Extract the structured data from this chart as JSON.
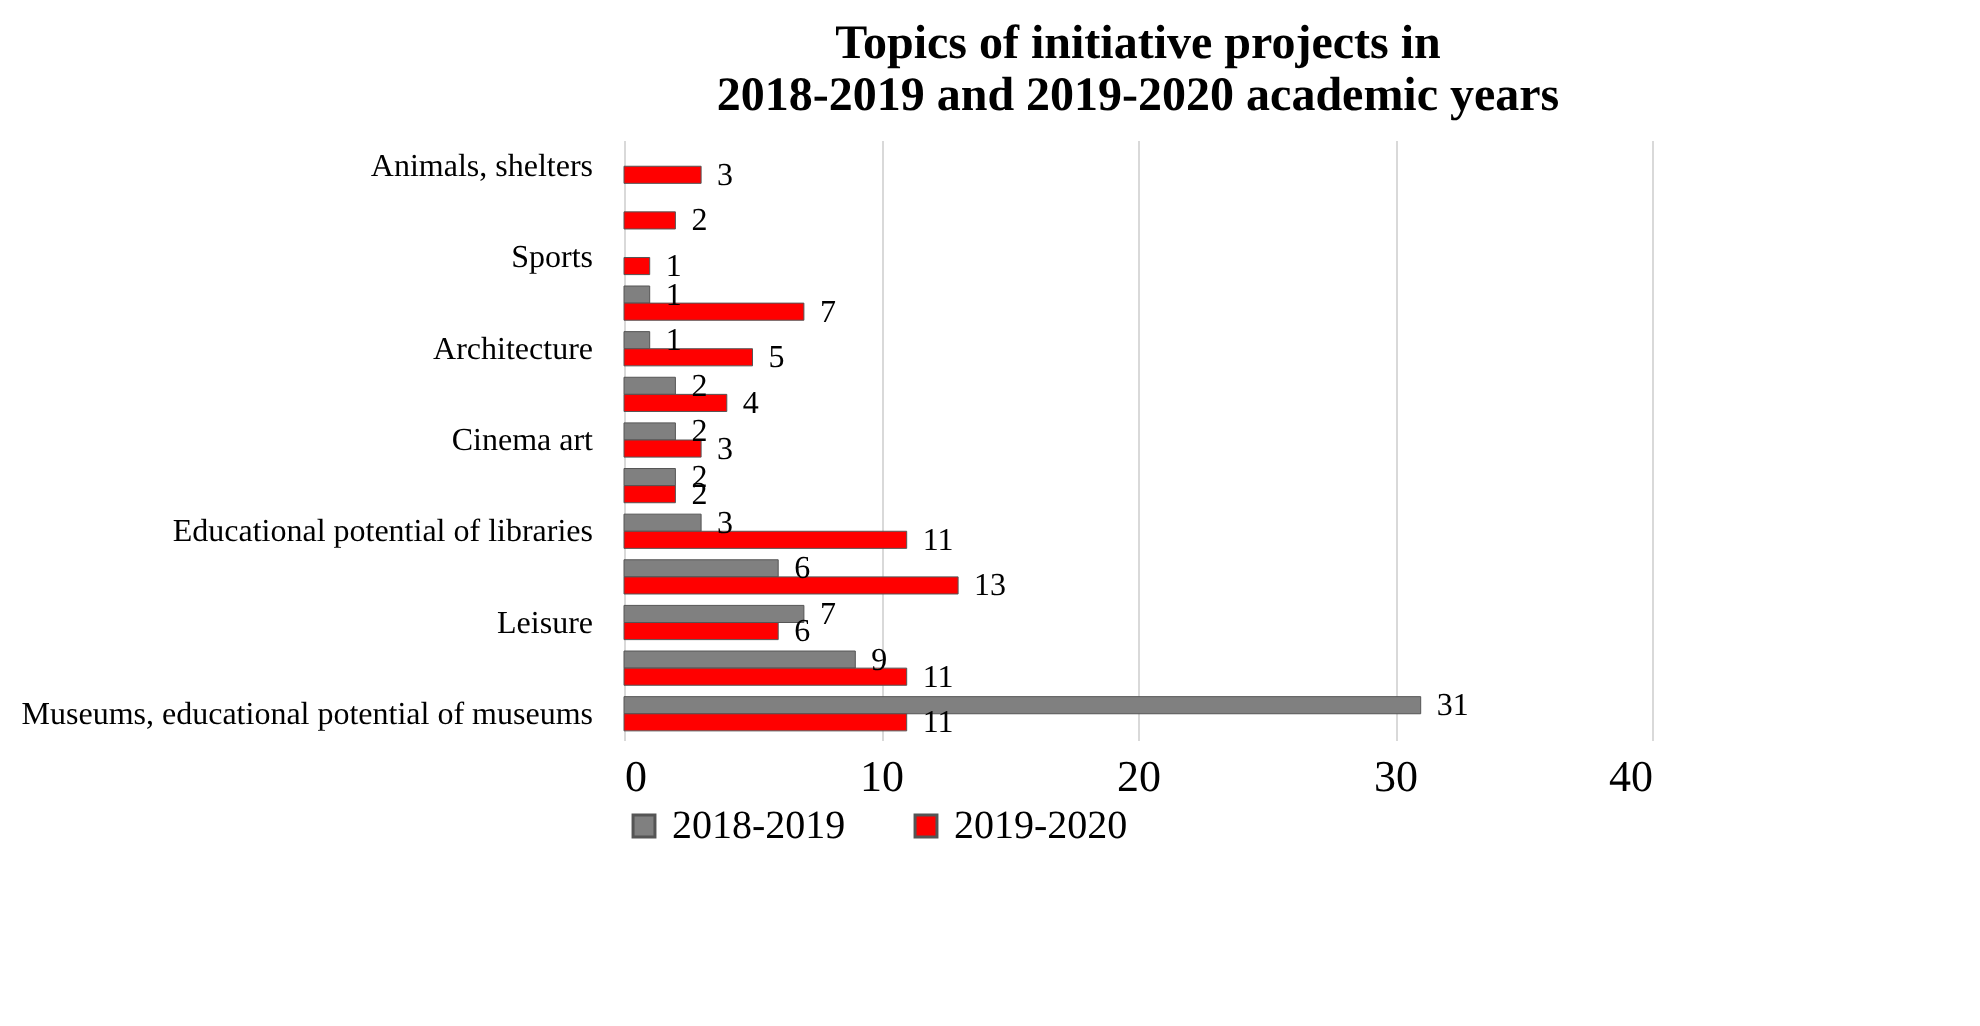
{
  "chart_data": {
    "type": "bar",
    "orientation": "horizontal",
    "title": "Topics of initiative projects in 2018-2019 and 2019-2020 academic years",
    "categories": [
      "Animals, shelters",
      null,
      "Sports",
      null,
      "Architecture",
      null,
      "Cinema art",
      null,
      "Educational potential of libraries",
      null,
      "Leisure",
      null,
      "Museums, educational potential of museums"
    ],
    "series": [
      {
        "name": "2018-2019",
        "color": "#808080",
        "values": [
          null,
          null,
          null,
          1,
          1,
          2,
          2,
          2,
          3,
          6,
          7,
          9,
          31
        ]
      },
      {
        "name": "2019-2020",
        "color": "#ff0000",
        "values": [
          3,
          2,
          1,
          7,
          5,
          4,
          3,
          2,
          11,
          13,
          6,
          11,
          11
        ]
      }
    ],
    "xlim": [
      0,
      40
    ],
    "xticks": [
      0,
      10,
      20,
      30,
      40
    ],
    "grid": "x",
    "data_labels": true,
    "legend": "bottom"
  }
}
